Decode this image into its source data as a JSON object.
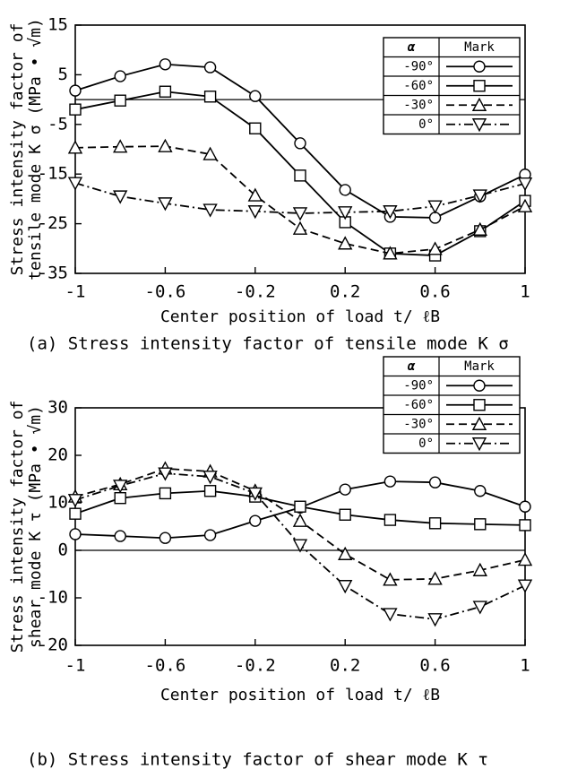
{
  "chart_data": [
    {
      "type": "line",
      "ylabel": [
        "Stress intensity factor of",
        "tensile mode K σ (MPa • √m)"
      ],
      "xlabel": "Center position of load  t/ ℓB",
      "caption": "(a)  Stress intensity factor of tensile mode K σ",
      "legend_header": [
        "α",
        "Mark"
      ],
      "x": [
        -1,
        -0.8,
        -0.6,
        -0.4,
        -0.2,
        0,
        0.2,
        0.4,
        0.6,
        0.8,
        1
      ],
      "xlim": [
        -1,
        1
      ],
      "xticks": [
        -1,
        -0.6,
        -0.2,
        0.2,
        0.6,
        1
      ],
      "ylim": [
        -35,
        15
      ],
      "yticks": [
        -35,
        -25,
        -15,
        -5,
        5,
        15
      ],
      "series": [
        {
          "name": "-90°",
          "color": "#000000",
          "marker": "circle",
          "dash": "solid",
          "values": [
            1.8,
            4.7,
            7.1,
            6.5,
            0.7,
            -8.8,
            -18.2,
            -23.6,
            -23.8,
            -19.5,
            -15.1
          ]
        },
        {
          "name": "-60°",
          "color": "#000000",
          "marker": "square",
          "dash": "solid",
          "values": [
            -2,
            -0.2,
            1.6,
            0.6,
            -5.8,
            -15.3,
            -24.7,
            -31,
            -31.4,
            -26.5,
            -20.4
          ]
        },
        {
          "name": "-30°",
          "color": "#000000",
          "marker": "triangle",
          "dash": "dashed",
          "values": [
            -9.7,
            -9.5,
            -9.4,
            -11,
            -19.3,
            -26,
            -29,
            -31,
            -30.1,
            -26.2,
            -21.5
          ]
        },
        {
          "name": "0°",
          "color": "#000000",
          "marker": "triangle-down",
          "dash": "dashdot",
          "values": [
            -16.8,
            -19.5,
            -20.9,
            -22.2,
            -22.5,
            -22.9,
            -22.7,
            -22.5,
            -21.5,
            -19.3,
            -16.9
          ]
        }
      ]
    },
    {
      "type": "line",
      "ylabel": [
        "Stress intensity factor of",
        "shear mode K τ (MPa • √m)"
      ],
      "xlabel": "Center position of load  t/ ℓB",
      "caption": "(b)  Stress intensity factor of shear mode K τ",
      "legend_header": [
        "α",
        "Mark"
      ],
      "x": [
        -1,
        -0.8,
        -0.6,
        -0.4,
        -0.2,
        0,
        0.2,
        0.4,
        0.6,
        0.8,
        1
      ],
      "xlim": [
        -1,
        1
      ],
      "xticks": [
        -1,
        -0.6,
        -0.2,
        0.2,
        0.6,
        1
      ],
      "ylim": [
        -20,
        30
      ],
      "yticks": [
        -20,
        -10,
        0,
        10,
        20,
        30
      ],
      "series": [
        {
          "name": "-90°",
          "color": "#000000",
          "marker": "circle",
          "dash": "solid",
          "values": [
            3.4,
            3,
            2.6,
            3.2,
            6.2,
            9,
            12.8,
            14.5,
            14.3,
            12.5,
            9.2
          ]
        },
        {
          "name": "-60°",
          "color": "#000000",
          "marker": "square",
          "dash": "solid",
          "values": [
            7.7,
            11,
            12,
            12.5,
            11.3,
            9.2,
            7.5,
            6.4,
            5.7,
            5.5,
            5.3
          ]
        },
        {
          "name": "-30°",
          "color": "#000000",
          "marker": "triangle",
          "dash": "dashed",
          "values": [
            11.3,
            13.9,
            17.2,
            16.6,
            12.5,
            6.2,
            -0.8,
            -6.2,
            -6,
            -4.2,
            -2
          ]
        },
        {
          "name": "0°",
          "color": "#000000",
          "marker": "triangle-down",
          "dash": "dashdot",
          "values": [
            10.6,
            13.6,
            16.2,
            15.5,
            12,
            1.1,
            -7.5,
            -13.4,
            -14.5,
            -11.9,
            -7.4
          ]
        }
      ]
    }
  ]
}
